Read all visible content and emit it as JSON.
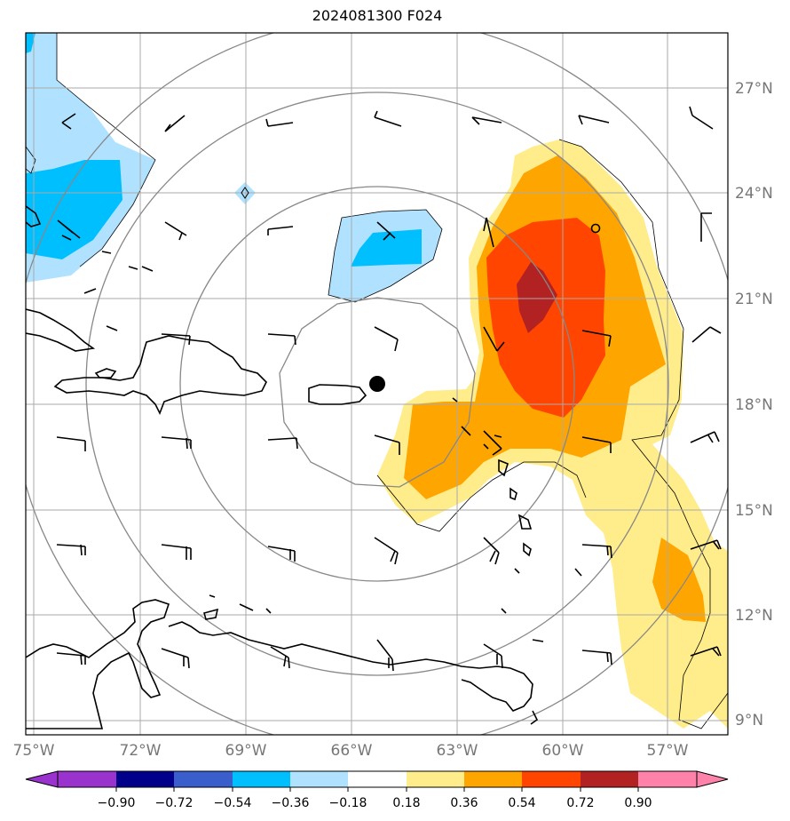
{
  "title": "2024081300 F024",
  "map": {
    "lat_labels": [
      "27°N",
      "24°N",
      "21°N",
      "18°N",
      "15°N",
      "12°N",
      "9°N"
    ],
    "lon_labels": [
      "75°W",
      "72°W",
      "69°W",
      "66°W",
      "63°W",
      "60°W",
      "57°W"
    ],
    "center_marker": "storm-center",
    "colors": {
      "land_outline": "#000000",
      "grid": "#aaaaaa",
      "range_rings": "#888888"
    }
  },
  "colorbar": {
    "ticks": [
      "−0.90",
      "−0.72",
      "−0.54",
      "−0.36",
      "−0.18",
      "0.18",
      "0.36",
      "0.54",
      "0.72",
      "0.90"
    ],
    "colors": [
      "#9a32cd",
      "#00008b",
      "#3a5fcd",
      "#00bfff",
      "#b0e2ff",
      "#ffffff",
      "#ffec8b",
      "#ffa500",
      "#ff4500",
      "#b22222",
      "#ff82ab"
    ]
  }
}
